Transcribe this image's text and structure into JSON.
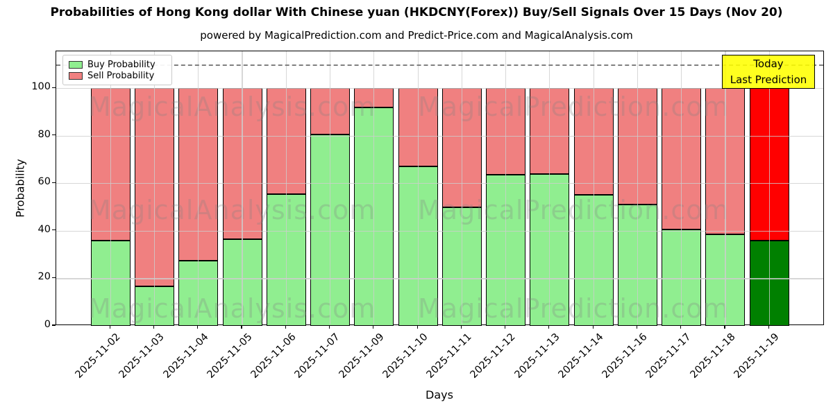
{
  "chart_data": {
    "type": "bar",
    "stacked": true,
    "title": "Probabilities of Hong Kong dollar With Chinese yuan (HKDCNY(Forex)) Buy/Sell Signals Over 15 Days (Nov 20)",
    "subtitle": "powered by MagicalPrediction.com and Predict-Price.com and MagicalAnalysis.com",
    "xlabel": "Days",
    "ylabel": "Probability",
    "categories": [
      "2025-11-02",
      "2025-11-03",
      "2025-11-04",
      "2025-11-05",
      "2025-11-06",
      "2025-11-07",
      "2025-11-09",
      "2025-11-10",
      "2025-11-11",
      "2025-11-12",
      "2025-11-13",
      "2025-11-14",
      "2025-11-16",
      "2025-11-17",
      "2025-11-18",
      "2025-11-19"
    ],
    "series": [
      {
        "name": "Buy Probability",
        "color": "#90EE90",
        "values": [
          36,
          16.5,
          27.5,
          36.5,
          55.5,
          80.5,
          92,
          67,
          50,
          63.5,
          64,
          55,
          51,
          40.5,
          38.5,
          36
        ]
      },
      {
        "name": "Sell Probability",
        "color": "#F08080",
        "values": [
          64,
          83.5,
          72.5,
          63.5,
          44.5,
          19.5,
          8,
          33,
          50,
          36.5,
          36,
          45,
          49,
          59.5,
          61.5,
          64
        ]
      }
    ],
    "today_bar": {
      "category": "2025-11-19",
      "buy_color": "#008000",
      "sell_color": "#FF0000"
    },
    "yticks": [
      0,
      20,
      40,
      60,
      80,
      100
    ],
    "ylim": [
      0,
      115.5
    ],
    "dashed_line_y": 110,
    "grid": true,
    "legend_position": "upper left",
    "annotation": {
      "line1": "Today",
      "line2": "Last Prediction",
      "bg_color": "#FFFF00"
    },
    "watermark": {
      "left": "MagicalAnalysis.com",
      "right": "MagicalPrediction.com"
    },
    "colors": {
      "dashed_line": "#7f7f7f",
      "grid": "#cdcdcd",
      "bar_edge": "#000000"
    }
  }
}
